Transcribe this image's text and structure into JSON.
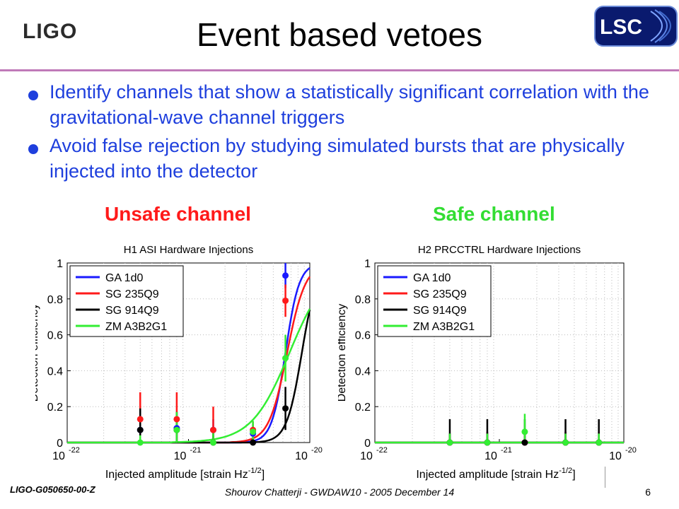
{
  "header": {
    "logo_left": "LIGO",
    "logo_right": "LSC",
    "title": "Event based vetoes"
  },
  "bullets": [
    "Identify channels that show a statistically significant correlation with the gravitational-wave channel triggers",
    "Avoid false rejection by studying simulated bursts that are physically injected into the detector"
  ],
  "labels": {
    "unsafe": "Unsafe channel",
    "safe": "Safe channel"
  },
  "colors": {
    "bullet_text": "#1e3fdd",
    "unsafe": "#ff1a1a",
    "safe": "#33dd33",
    "title_rule": "#c07ab8"
  },
  "footer": {
    "doc_id": "LIGO-G050650-00-Z",
    "credit": "Shourov Chatterji - GWDAW10 - 2005 December 14",
    "page": "6"
  },
  "chart_data": [
    {
      "type": "line",
      "title": "H1 ASI Hardware Injections",
      "xlabel": "Injected amplitude [strain Hz",
      "xlabel_sup": "-1/2",
      "xlabel_end": "]",
      "ylabel": "Detection efficiency",
      "xscale": "log",
      "xlim": [
        1e-22,
        1e-20
      ],
      "ylim": [
        0,
        1
      ],
      "grid": true,
      "legend_loc": "top-left",
      "x_tick_labels": [
        "10",
        "10",
        "10"
      ],
      "x_tick_exponents": [
        "-22",
        "-21",
        "-20"
      ],
      "y_tick_labels": [
        "0",
        "0.2",
        "0.4",
        "0.6",
        "0.8",
        "1"
      ],
      "series": [
        {
          "name": "GA 1d0",
          "color": "#1a1aff",
          "curve_center": 6.3e-21,
          "curve_width": 0.09,
          "points": [
            {
              "x": 4e-22,
              "y": 0.07,
              "err": 0.08
            },
            {
              "x": 8e-22,
              "y": 0.08,
              "err": 0.09
            },
            {
              "x": 1.6e-21,
              "y": 0.07,
              "err": 0.06
            },
            {
              "x": 3.4e-21,
              "y": 0.05,
              "err": 0.05
            },
            {
              "x": 6.3e-21,
              "y": 0.93,
              "err": 0.07
            }
          ]
        },
        {
          "name": "SG 235Q9",
          "color": "#ff1a1a",
          "curve_center": 6.5e-21,
          "curve_width": 0.12,
          "points": [
            {
              "x": 4e-22,
              "y": 0.13,
              "err": 0.15
            },
            {
              "x": 8e-22,
              "y": 0.13,
              "err": 0.15
            },
            {
              "x": 1.6e-21,
              "y": 0.07,
              "err": 0.13
            },
            {
              "x": 3.4e-21,
              "y": 0.07,
              "err": 0.05
            },
            {
              "x": 6.3e-21,
              "y": 0.79,
              "err": 0.09
            }
          ]
        },
        {
          "name": "SG 914Q9",
          "color": "#000000",
          "curve_center": 8.6e-21,
          "curve_width": 0.1,
          "points": [
            {
              "x": 4e-22,
              "y": 0.07,
              "err": 0.12
            },
            {
              "x": 8e-22,
              "y": 0.07,
              "err": 0.1
            },
            {
              "x": 1.6e-21,
              "y": 0.0,
              "err": 0.05
            },
            {
              "x": 3.4e-21,
              "y": 0.0,
              "err": 0.02
            },
            {
              "x": 6.3e-21,
              "y": 0.19,
              "err": 0.12
            }
          ]
        },
        {
          "name": "ZM A3B2G1",
          "color": "#33ee33",
          "curve_center": 6.8e-21,
          "curve_width": 0.25,
          "points": [
            {
              "x": 4e-22,
              "y": 0.0,
              "err": 0.04
            },
            {
              "x": 8e-22,
              "y": 0.07,
              "err": 0.1
            },
            {
              "x": 1.6e-21,
              "y": 0.0,
              "err": 0.07
            },
            {
              "x": 3.4e-21,
              "y": 0.06,
              "err": 0.06
            },
            {
              "x": 6.3e-21,
              "y": 0.47,
              "err": 0.13
            }
          ]
        }
      ]
    },
    {
      "type": "line",
      "title": "H2 PRCCTRL Hardware Injections",
      "xlabel": "Injected amplitude [strain Hz",
      "xlabel_sup": "-1/2",
      "xlabel_end": "]",
      "ylabel": "Detection efficiency",
      "xscale": "log",
      "xlim": [
        1e-22,
        1e-20
      ],
      "ylim": [
        0,
        1
      ],
      "grid": true,
      "legend_loc": "top-left",
      "x_tick_labels": [
        "10",
        "10",
        "10"
      ],
      "x_tick_exponents": [
        "-22",
        "-21",
        "-20"
      ],
      "y_tick_labels": [
        "0",
        "0.2",
        "0.4",
        "0.6",
        "0.8",
        "1"
      ],
      "series": [
        {
          "name": "GA 1d0",
          "color": "#1a1aff",
          "curve_center": null,
          "curve_width": null,
          "points": [
            {
              "x": 4e-22,
              "y": 0.0,
              "err": 0.05
            },
            {
              "x": 8e-22,
              "y": 0.0,
              "err": 0.06
            },
            {
              "x": 1.6e-21,
              "y": 0.0,
              "err": 0.06
            },
            {
              "x": 3.4e-21,
              "y": 0.0,
              "err": 0.06
            },
            {
              "x": 6.3e-21,
              "y": 0.0,
              "err": 0.06
            }
          ]
        },
        {
          "name": "SG 235Q9",
          "color": "#ff1a1a",
          "curve_center": null,
          "curve_width": null,
          "points": [
            {
              "x": 4e-22,
              "y": 0.0,
              "err": 0.05
            },
            {
              "x": 8e-22,
              "y": 0.0,
              "err": 0.06
            },
            {
              "x": 1.6e-21,
              "y": 0.0,
              "err": 0.06
            },
            {
              "x": 3.4e-21,
              "y": 0.0,
              "err": 0.06
            },
            {
              "x": 6.3e-21,
              "y": 0.0,
              "err": 0.06
            }
          ]
        },
        {
          "name": "SG 914Q9",
          "color": "#000000",
          "curve_center": null,
          "curve_width": null,
          "points": [
            {
              "x": 4e-22,
              "y": 0.0,
              "err": 0.13
            },
            {
              "x": 8e-22,
              "y": 0.0,
              "err": 0.13
            },
            {
              "x": 1.6e-21,
              "y": 0.0,
              "err": 0.13
            },
            {
              "x": 3.4e-21,
              "y": 0.0,
              "err": 0.13
            },
            {
              "x": 6.3e-21,
              "y": 0.0,
              "err": 0.13
            }
          ]
        },
        {
          "name": "ZM A3B2G1",
          "color": "#33ee33",
          "curve_center": null,
          "curve_width": null,
          "points": [
            {
              "x": 4e-22,
              "y": 0.0,
              "err": 0.05
            },
            {
              "x": 8e-22,
              "y": 0.0,
              "err": 0.05
            },
            {
              "x": 1.6e-21,
              "y": 0.06,
              "err": 0.1
            },
            {
              "x": 3.4e-21,
              "y": 0.0,
              "err": 0.05
            },
            {
              "x": 6.3e-21,
              "y": 0.0,
              "err": 0.05
            }
          ]
        }
      ]
    }
  ]
}
